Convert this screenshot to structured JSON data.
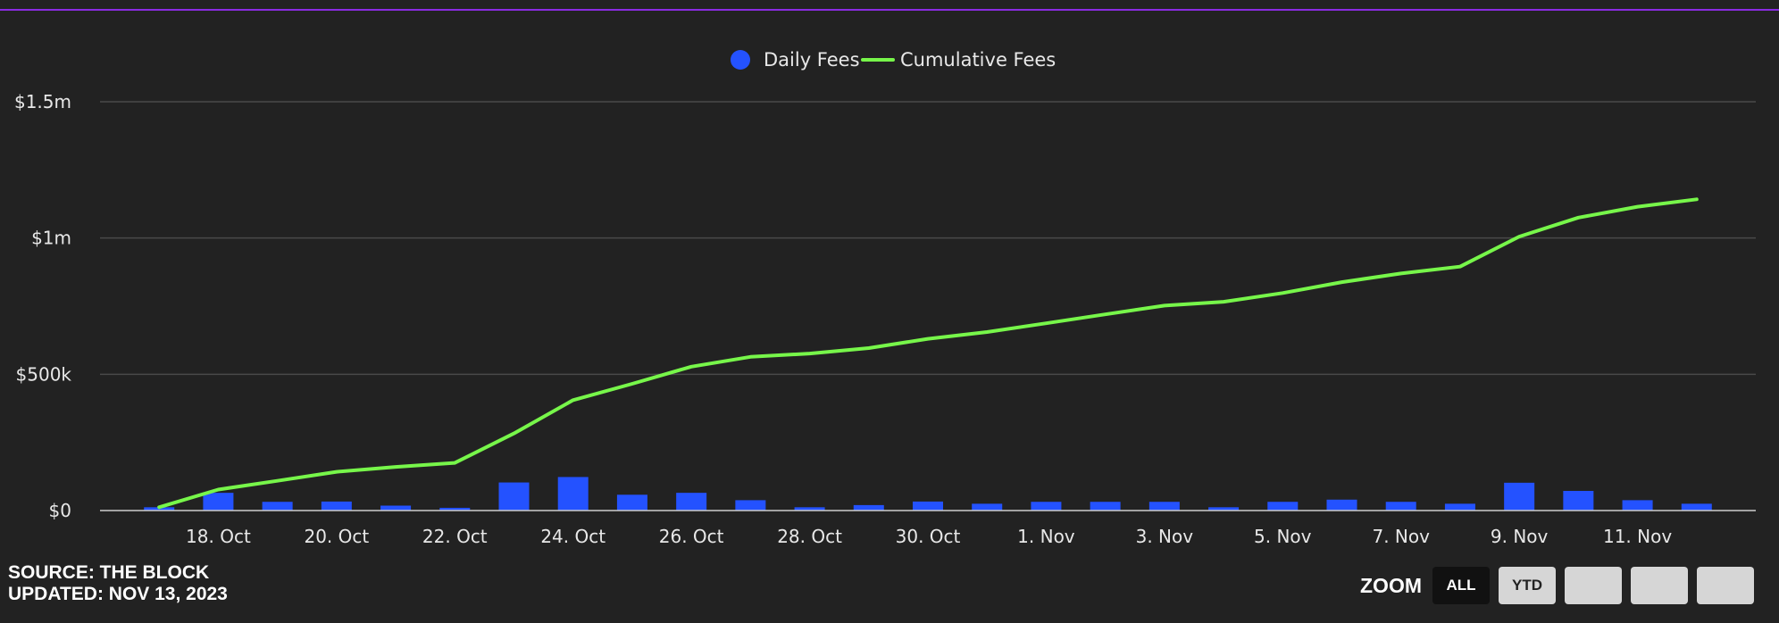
{
  "chart_data": {
    "type": "bar",
    "legend": [
      {
        "name": "Daily Fees",
        "color": "#2452ff",
        "marker": "circle"
      },
      {
        "name": "Cumulative Fees",
        "color": "#77f64a",
        "marker": "line"
      }
    ],
    "legend_placement": "top-center",
    "grid": true,
    "y_ticks": [
      {
        "value": 0,
        "label": "$0"
      },
      {
        "value": 500000,
        "label": "$500k"
      },
      {
        "value": 1000000,
        "label": "$1m"
      },
      {
        "value": 1500000,
        "label": "$1.5m"
      }
    ],
    "ylim": [
      0,
      1500000
    ],
    "x_ticks": [
      {
        "date": "2023-10-18",
        "label": "18. Oct"
      },
      {
        "date": "2023-10-20",
        "label": "20. Oct"
      },
      {
        "date": "2023-10-22",
        "label": "22. Oct"
      },
      {
        "date": "2023-10-24",
        "label": "24. Oct"
      },
      {
        "date": "2023-10-26",
        "label": "26. Oct"
      },
      {
        "date": "2023-10-28",
        "label": "28. Oct"
      },
      {
        "date": "2023-10-30",
        "label": "30. Oct"
      },
      {
        "date": "2023-11-01",
        "label": "1. Nov"
      },
      {
        "date": "2023-11-03",
        "label": "3. Nov"
      },
      {
        "date": "2023-11-05",
        "label": "5. Nov"
      },
      {
        "date": "2023-11-07",
        "label": "7. Nov"
      },
      {
        "date": "2023-11-09",
        "label": "9. Nov"
      },
      {
        "date": "2023-11-11",
        "label": "11. Nov"
      }
    ],
    "xlim": [
      "2023-10-16",
      "2023-11-13"
    ],
    "series": [
      {
        "name": "Daily Fees",
        "type": "bar",
        "color": "#2452ff",
        "points": [
          {
            "x": "2023-10-17",
            "y": 12000
          },
          {
            "x": "2023-10-18",
            "y": 65000
          },
          {
            "x": "2023-10-19",
            "y": 32000
          },
          {
            "x": "2023-10-20",
            "y": 33000
          },
          {
            "x": "2023-10-21",
            "y": 18000
          },
          {
            "x": "2023-10-22",
            "y": 10000
          },
          {
            "x": "2023-10-23",
            "y": 103000
          },
          {
            "x": "2023-10-24",
            "y": 123000
          },
          {
            "x": "2023-10-25",
            "y": 58000
          },
          {
            "x": "2023-10-26",
            "y": 65000
          },
          {
            "x": "2023-10-27",
            "y": 38000
          },
          {
            "x": "2023-10-28",
            "y": 12000
          },
          {
            "x": "2023-10-29",
            "y": 20000
          },
          {
            "x": "2023-10-30",
            "y": 33000
          },
          {
            "x": "2023-10-31",
            "y": 25000
          },
          {
            "x": "2023-11-01",
            "y": 32000
          },
          {
            "x": "2023-11-02",
            "y": 32000
          },
          {
            "x": "2023-11-03",
            "y": 32000
          },
          {
            "x": "2023-11-04",
            "y": 12000
          },
          {
            "x": "2023-11-05",
            "y": 32000
          },
          {
            "x": "2023-11-06",
            "y": 40000
          },
          {
            "x": "2023-11-07",
            "y": 32000
          },
          {
            "x": "2023-11-08",
            "y": 25000
          },
          {
            "x": "2023-11-09",
            "y": 102000
          },
          {
            "x": "2023-11-10",
            "y": 72000
          },
          {
            "x": "2023-11-11",
            "y": 38000
          },
          {
            "x": "2023-11-12",
            "y": 25000
          }
        ]
      },
      {
        "name": "Cumulative Fees",
        "type": "line",
        "color": "#77f64a",
        "points": [
          {
            "x": "2023-10-17",
            "y": 12000
          },
          {
            "x": "2023-10-18",
            "y": 77000
          },
          {
            "x": "2023-10-19",
            "y": 109000
          },
          {
            "x": "2023-10-20",
            "y": 142000
          },
          {
            "x": "2023-10-21",
            "y": 160000
          },
          {
            "x": "2023-10-22",
            "y": 175000
          },
          {
            "x": "2023-10-23",
            "y": 283000
          },
          {
            "x": "2023-10-24",
            "y": 405000
          },
          {
            "x": "2023-10-25",
            "y": 465000
          },
          {
            "x": "2023-10-26",
            "y": 528000
          },
          {
            "x": "2023-10-27",
            "y": 564000
          },
          {
            "x": "2023-10-28",
            "y": 576000
          },
          {
            "x": "2023-10-29",
            "y": 596000
          },
          {
            "x": "2023-10-30",
            "y": 630000
          },
          {
            "x": "2023-10-31",
            "y": 655000
          },
          {
            "x": "2023-11-01",
            "y": 687000
          },
          {
            "x": "2023-11-02",
            "y": 720000
          },
          {
            "x": "2023-11-03",
            "y": 752000
          },
          {
            "x": "2023-11-04",
            "y": 766000
          },
          {
            "x": "2023-11-05",
            "y": 798000
          },
          {
            "x": "2023-11-06",
            "y": 838000
          },
          {
            "x": "2023-11-07",
            "y": 870000
          },
          {
            "x": "2023-11-08",
            "y": 895000
          },
          {
            "x": "2023-11-09",
            "y": 1005000
          },
          {
            "x": "2023-11-10",
            "y": 1075000
          },
          {
            "x": "2023-11-11",
            "y": 1115000
          },
          {
            "x": "2023-11-12",
            "y": 1142000
          }
        ]
      }
    ]
  },
  "footer": {
    "source": "SOURCE: THE BLOCK",
    "updated": "UPDATED: NOV 13, 2023"
  },
  "zoom": {
    "label": "ZOOM",
    "buttons": [
      {
        "label": "ALL",
        "active": true
      },
      {
        "label": "YTD",
        "active": false
      },
      {
        "label": "",
        "active": false
      },
      {
        "label": "",
        "active": false
      },
      {
        "label": "",
        "active": false
      }
    ]
  },
  "colors": {
    "background": "#222222",
    "top_rule": "#8a2be2",
    "gridline": "#4a4a4a",
    "axis": "#cccccc"
  }
}
